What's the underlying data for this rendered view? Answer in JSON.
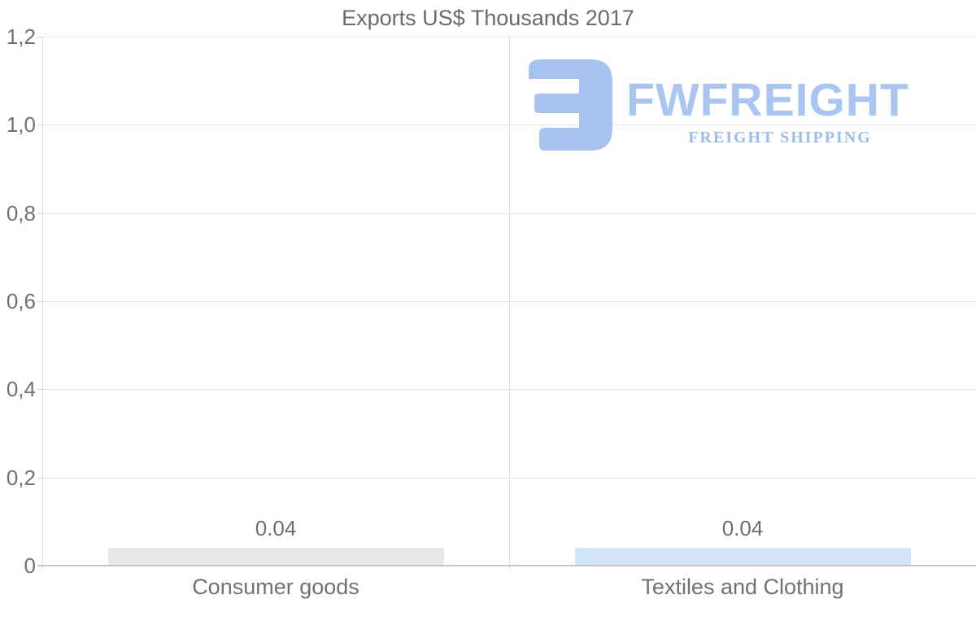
{
  "chart_data": {
    "type": "bar",
    "title": "Exports US$ Thousands 2017",
    "categories": [
      "Consumer goods",
      "Textiles and Clothing"
    ],
    "values": [
      0.04,
      0.04
    ],
    "value_labels": [
      "0.04",
      "0.04"
    ],
    "series_colors": [
      "#e8e8e8",
      "#d2e4f8"
    ],
    "ylim": [
      0,
      1.2
    ],
    "yticks": [
      {
        "value": 0,
        "label": "0"
      },
      {
        "value": 0.2,
        "label": "0,2"
      },
      {
        "value": 0.4,
        "label": "0,4"
      },
      {
        "value": 0.6,
        "label": "0,6"
      },
      {
        "value": 0.8,
        "label": "0,8"
      },
      {
        "value": 1.0,
        "label": "1,0"
      },
      {
        "value": 1.2,
        "label": "1,2"
      }
    ],
    "grid": true,
    "legend": "none",
    "xlabel": "",
    "ylabel": ""
  },
  "logo": {
    "name": "FWFREIGHT",
    "tagline": "FREIGHT SHIPPING",
    "color": "#a6c3ef"
  },
  "colors": {
    "background": "#ffffff",
    "title_text": "#6b6b6b",
    "axis_text": "#717171",
    "gridline": "#e6e6e6",
    "axis_line": "#c6c6c6",
    "tick": "#d2d2d2",
    "divider": "#e0e0e0"
  }
}
